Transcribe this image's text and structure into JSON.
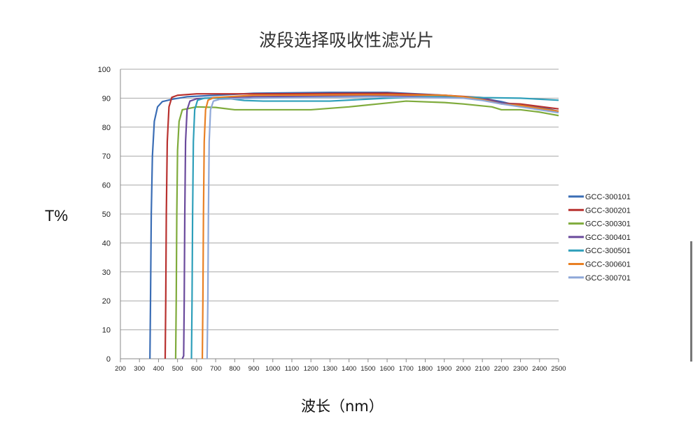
{
  "chart_data": {
    "type": "line",
    "title": "波段选择吸收性滤光片",
    "xlabel": "波长（nm）",
    "ylabel": "T%",
    "xlim": [
      200,
      2500
    ],
    "ylim": [
      0,
      100
    ],
    "xticks": [
      200,
      300,
      400,
      500,
      600,
      700,
      800,
      900,
      1000,
      1100,
      1200,
      1300,
      1400,
      1500,
      1600,
      1700,
      1800,
      1900,
      2000,
      2100,
      2200,
      2300,
      2400,
      2500
    ],
    "yticks": [
      0,
      10,
      20,
      30,
      40,
      50,
      60,
      70,
      80,
      90,
      100
    ],
    "grid": "horizontal",
    "legend_position": "right",
    "series": [
      {
        "name": "GCC-300101",
        "color": "#3a6db5",
        "points": [
          [
            355,
            0
          ],
          [
            358,
            20
          ],
          [
            362,
            50
          ],
          [
            368,
            70
          ],
          [
            378,
            82
          ],
          [
            395,
            87
          ],
          [
            420,
            88.8
          ],
          [
            470,
            89.6
          ],
          [
            550,
            90.5
          ],
          [
            700,
            91
          ],
          [
            900,
            91.7
          ],
          [
            1300,
            92
          ],
          [
            1600,
            92
          ],
          [
            1900,
            91
          ],
          [
            2100,
            90
          ],
          [
            2200,
            88.8
          ],
          [
            2250,
            88
          ],
          [
            2400,
            87
          ],
          [
            2500,
            85.5
          ]
        ]
      },
      {
        "name": "GCC-300201",
        "color": "#b8312f",
        "points": [
          [
            435,
            0
          ],
          [
            438,
            20
          ],
          [
            441,
            50
          ],
          [
            446,
            75
          ],
          [
            455,
            87
          ],
          [
            470,
            90.3
          ],
          [
            500,
            91
          ],
          [
            600,
            91.5
          ],
          [
            1000,
            91.5
          ],
          [
            1600,
            91.7
          ],
          [
            1900,
            91
          ],
          [
            2100,
            90.2
          ],
          [
            2200,
            88.3
          ],
          [
            2300,
            88
          ],
          [
            2500,
            86.3
          ]
        ]
      },
      {
        "name": "GCC-300301",
        "color": "#7fab3c",
        "points": [
          [
            490,
            0
          ],
          [
            493,
            20
          ],
          [
            496,
            50
          ],
          [
            500,
            72
          ],
          [
            508,
            82
          ],
          [
            525,
            86
          ],
          [
            600,
            87
          ],
          [
            700,
            86.8
          ],
          [
            800,
            86
          ],
          [
            900,
            86
          ],
          [
            1200,
            86
          ],
          [
            1400,
            87
          ],
          [
            1550,
            88
          ],
          [
            1700,
            89
          ],
          [
            1900,
            88.5
          ],
          [
            2000,
            88
          ],
          [
            2150,
            87
          ],
          [
            2200,
            86
          ],
          [
            2300,
            86
          ],
          [
            2400,
            85.2
          ],
          [
            2500,
            84
          ]
        ]
      },
      {
        "name": "GCC-300401",
        "color": "#6a4a9c",
        "points": [
          [
            525,
            0
          ],
          [
            532,
            1
          ],
          [
            535,
            20
          ],
          [
            538,
            50
          ],
          [
            542,
            75
          ],
          [
            550,
            86
          ],
          [
            565,
            89
          ],
          [
            600,
            89.8
          ],
          [
            700,
            90.2
          ],
          [
            900,
            90.5
          ],
          [
            1500,
            90.8
          ],
          [
            1900,
            90.6
          ],
          [
            2100,
            90
          ],
          [
            2200,
            88.3
          ],
          [
            2300,
            87.5
          ],
          [
            2500,
            85.5
          ]
        ]
      },
      {
        "name": "GCC-300501",
        "color": "#2e9fba",
        "points": [
          [
            573,
            0
          ],
          [
            576,
            20
          ],
          [
            579,
            50
          ],
          [
            583,
            75
          ],
          [
            590,
            86
          ],
          [
            605,
            89.3
          ],
          [
            640,
            90
          ],
          [
            750,
            90
          ],
          [
            850,
            89.2
          ],
          [
            950,
            89
          ],
          [
            1300,
            89
          ],
          [
            1600,
            90
          ],
          [
            1900,
            90.7
          ],
          [
            2100,
            90.2
          ],
          [
            2300,
            90
          ],
          [
            2500,
            89.3
          ]
        ]
      },
      {
        "name": "GCC-300601",
        "color": "#e98024",
        "points": [
          [
            630,
            0
          ],
          [
            633,
            20
          ],
          [
            636,
            50
          ],
          [
            640,
            75
          ],
          [
            647,
            86
          ],
          [
            660,
            89.3
          ],
          [
            690,
            90.2
          ],
          [
            900,
            91
          ],
          [
            1500,
            91.2
          ],
          [
            1900,
            91
          ],
          [
            2000,
            90.5
          ],
          [
            2100,
            89.5
          ],
          [
            2200,
            88
          ],
          [
            2300,
            87.5
          ],
          [
            2500,
            85.5
          ]
        ]
      },
      {
        "name": "GCC-300701",
        "color": "#8fa8d8",
        "points": [
          [
            655,
            0
          ],
          [
            659,
            20
          ],
          [
            662,
            50
          ],
          [
            666,
            75
          ],
          [
            673,
            86
          ],
          [
            688,
            89
          ],
          [
            720,
            89.6
          ],
          [
            900,
            90
          ],
          [
            1500,
            90.5
          ],
          [
            2000,
            90
          ],
          [
            2100,
            89.2
          ],
          [
            2200,
            88
          ],
          [
            2300,
            87
          ],
          [
            2500,
            85
          ]
        ]
      }
    ]
  }
}
